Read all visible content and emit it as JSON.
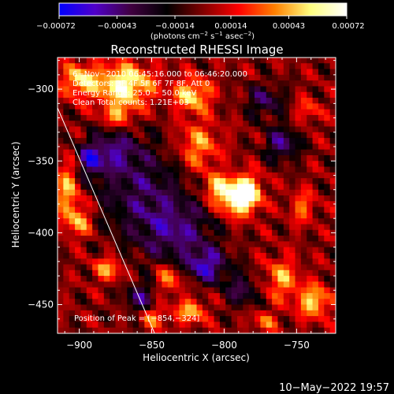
{
  "chart_data": {
    "type": "heatmap",
    "title": "Reconstructed RHESSI Image",
    "xlabel": "Heliocentric X (arcsec)",
    "ylabel": "Heliocentric Y (arcsec)",
    "xlim": [
      -915,
      -723
    ],
    "ylim": [
      -470,
      -278
    ],
    "x_ticks": [
      -900,
      -850,
      -800,
      -750
    ],
    "x_tick_labels": [
      "−900",
      "−850",
      "−800",
      "−750"
    ],
    "y_ticks": [
      -300,
      -350,
      -400,
      -450
    ],
    "y_tick_labels": [
      "−300",
      "−350",
      "−400",
      "−450"
    ],
    "colorbar": {
      "range": [
        -0.00072,
        0.00072
      ],
      "ticks": [
        -0.00072,
        -0.00043,
        -0.00014,
        0.00014,
        0.00043,
        0.00072
      ],
      "tick_labels": [
        "−0.00072",
        "−0.00043",
        "−0.00014",
        "0.00014",
        "0.00043",
        "0.00072"
      ],
      "units_parts": [
        "(photons cm",
        "−2",
        " s",
        "−1",
        " asec",
        "−2",
        ")"
      ],
      "colormap": [
        "#0000ff",
        "#5000c8",
        "#400040",
        "#000000",
        "#800000",
        "#ff0000",
        "#ff8000",
        "#ffff80",
        "#ffffff"
      ]
    },
    "annotations": [
      "6−Nov−2010 06:45:16.000 to 06:46:20.000",
      "Detectors: 3F 4F 5F 6F 7F 8F, Att 0",
      "Energy Range: 25.0 − 50.0 keV",
      "Clean     Total counts: 1.21E+03"
    ],
    "peak_label": "Position of Peak = [−854,−324]",
    "limb_line": [
      [
        -915,
        -313
      ],
      [
        -848,
        -470
      ]
    ],
    "hotspots": [
      {
        "x": -869,
        "y": -297,
        "sx": 14,
        "sy": 10,
        "amp": 0.00066
      },
      {
        "x": -900,
        "y": -294,
        "sx": 8,
        "sy": 8,
        "amp": 0.0005
      },
      {
        "x": -873,
        "y": -318,
        "sx": 8,
        "sy": 6,
        "amp": 0.00038
      },
      {
        "x": -822,
        "y": -304,
        "sx": 9,
        "sy": 8,
        "amp": 0.00052
      },
      {
        "x": -818,
        "y": -340,
        "sx": 10,
        "sy": 12,
        "amp": 0.0004
      },
      {
        "x": -793,
        "y": -375,
        "sx": 9,
        "sy": 9,
        "amp": 0.0007
      },
      {
        "x": -783,
        "y": -372,
        "sx": 6,
        "sy": 8,
        "amp": 0.00055
      },
      {
        "x": -806,
        "y": -368,
        "sx": 6,
        "sy": 6,
        "amp": 0.00036
      },
      {
        "x": -908,
        "y": -370,
        "sx": 6,
        "sy": 14,
        "amp": 0.00044
      },
      {
        "x": -900,
        "y": -392,
        "sx": 7,
        "sy": 8,
        "amp": 0.00038
      },
      {
        "x": -880,
        "y": -425,
        "sx": 7,
        "sy": 6,
        "amp": 0.0004
      },
      {
        "x": -838,
        "y": -432,
        "sx": 7,
        "sy": 7,
        "amp": 0.0004
      },
      {
        "x": -848,
        "y": -458,
        "sx": 6,
        "sy": 6,
        "amp": 0.00035
      },
      {
        "x": -823,
        "y": -455,
        "sx": 7,
        "sy": 6,
        "amp": 0.00044
      },
      {
        "x": -760,
        "y": -432,
        "sx": 8,
        "sy": 10,
        "amp": 0.0004
      },
      {
        "x": -738,
        "y": -448,
        "sx": 8,
        "sy": 8,
        "amp": 0.0005
      },
      {
        "x": -746,
        "y": -382,
        "sx": 6,
        "sy": 8,
        "amp": 0.0003
      },
      {
        "x": -742,
        "y": -315,
        "sx": 6,
        "sy": 6,
        "amp": 0.00025
      },
      {
        "x": -772,
        "y": -462,
        "sx": 6,
        "sy": 5,
        "amp": 0.0003
      }
    ],
    "coldspots": [
      {
        "x": -858,
        "y": -370,
        "sx": 22,
        "sy": 24,
        "amp": -0.00034
      },
      {
        "x": -832,
        "y": -400,
        "sx": 18,
        "sy": 16,
        "amp": -0.00038
      },
      {
        "x": -812,
        "y": -423,
        "sx": 10,
        "sy": 8,
        "amp": -0.0005
      },
      {
        "x": -878,
        "y": -343,
        "sx": 12,
        "sy": 10,
        "amp": -0.00035
      },
      {
        "x": -760,
        "y": -338,
        "sx": 8,
        "sy": 8,
        "amp": -0.00045
      },
      {
        "x": -772,
        "y": -308,
        "sx": 9,
        "sy": 8,
        "amp": -0.00035
      },
      {
        "x": -857,
        "y": -445,
        "sx": 8,
        "sy": 7,
        "amp": -0.0004
      },
      {
        "x": -893,
        "y": -350,
        "sx": 6,
        "sy": 8,
        "amp": -0.0004
      },
      {
        "x": -788,
        "y": -440,
        "sx": 8,
        "sy": 8,
        "amp": -0.00035
      }
    ]
  },
  "footer": {
    "timestamp": "10−May−2022 19:57"
  }
}
